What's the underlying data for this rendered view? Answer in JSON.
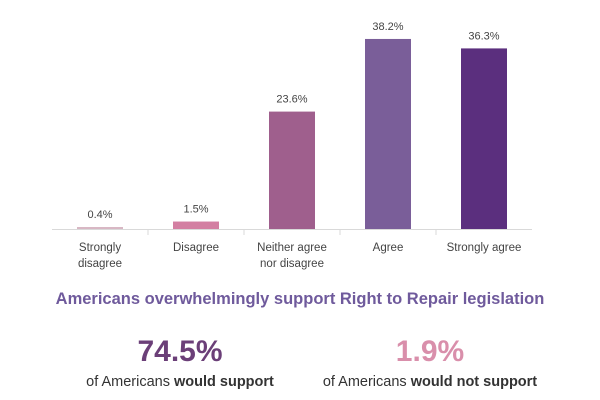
{
  "chart_data": {
    "type": "bar",
    "categories": [
      [
        "Strongly",
        "disagree"
      ],
      [
        "Disagree"
      ],
      [
        "Neither agree",
        "nor disagree"
      ],
      [
        "Agree"
      ],
      [
        "Strongly agree"
      ]
    ],
    "values": [
      0.4,
      1.5,
      23.6,
      38.2,
      36.3
    ],
    "value_labels": [
      "0.4%",
      "1.5%",
      "23.6%",
      "38.2%",
      "36.3%"
    ],
    "colors": [
      "#d8b7c4",
      "#d37fa2",
      "#9f5f8d",
      "#7a5e99",
      "#5b2f7e"
    ],
    "ylim": [
      0,
      40
    ],
    "title": "",
    "xlabel": "",
    "ylabel": ""
  },
  "headline": "Americans overwhelmingly support Right to Repair legislation",
  "stats": {
    "support": {
      "value": "74.5%",
      "color": "#6b3f78",
      "caption_prefix": "of Americans ",
      "caption_bold": "would support"
    },
    "oppose": {
      "value": "1.9%",
      "color": "#d98fab",
      "caption_prefix": "of Americans ",
      "caption_bold": "would not support"
    }
  }
}
